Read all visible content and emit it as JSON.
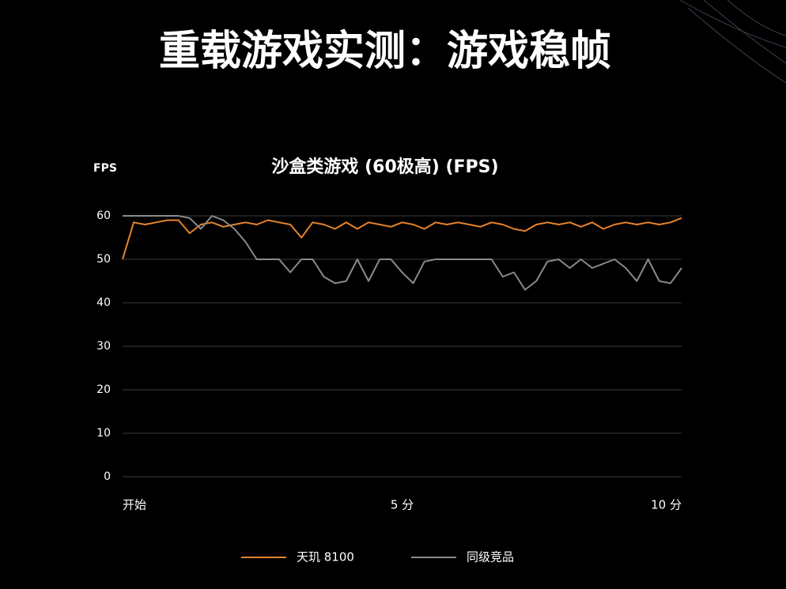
{
  "header": {
    "title": "重载游戏实测：游戏稳帧"
  },
  "chart_data": {
    "type": "line",
    "title": "沙盒类游戏 (60极高) (FPS)",
    "ylabel": "FPS",
    "x": [
      0,
      0.2,
      0.4,
      0.6,
      0.8,
      1,
      1.2,
      1.4,
      1.6,
      1.8,
      2,
      2.2,
      2.4,
      2.6,
      2.8,
      3,
      3.2,
      3.4,
      3.6,
      3.8,
      4,
      4.2,
      4.4,
      4.6,
      4.8,
      5,
      5.2,
      5.4,
      5.6,
      5.8,
      6,
      6.2,
      6.4,
      6.6,
      6.8,
      7,
      7.2,
      7.4,
      7.6,
      7.8,
      8,
      8.2,
      8.4,
      8.6,
      8.8,
      9,
      9.2,
      9.4,
      9.6,
      9.8,
      10
    ],
    "series": [
      {
        "name": "天玑 8100",
        "color": "#e8842c",
        "values": [
          50,
          58.5,
          58,
          58.5,
          59,
          59,
          56,
          58,
          58.5,
          57.5,
          58,
          58.5,
          58,
          59,
          58.5,
          58,
          55,
          58.5,
          58,
          57,
          58.5,
          57,
          58.5,
          58,
          57.5,
          58.5,
          58,
          57,
          58.5,
          58,
          58.5,
          58,
          57.5,
          58.5,
          58,
          57,
          56.5,
          58,
          58.5,
          58,
          58.5,
          57.5,
          58.5,
          57,
          58,
          58.5,
          58,
          58.5,
          58,
          58.5,
          59.5
        ]
      },
      {
        "name": "同级竞品",
        "color": "#8a8a8a",
        "values": [
          60,
          60,
          60,
          60,
          60,
          60,
          59.5,
          57,
          60,
          59,
          57,
          54,
          50,
          50,
          50,
          47,
          50,
          50,
          46,
          44.5,
          45,
          50,
          45,
          50,
          50,
          47,
          44.5,
          49.5,
          50,
          50,
          50,
          50,
          50,
          50,
          46,
          47,
          43,
          45,
          49.5,
          50,
          48,
          50,
          48,
          49,
          50,
          48,
          45,
          50,
          45,
          44.5,
          48
        ]
      }
    ],
    "xlim": [
      0,
      10
    ],
    "xticks": [
      {
        "value": 0,
        "label": "开始"
      },
      {
        "value": 5,
        "label": "5 分"
      },
      {
        "value": 10,
        "label": "10 分"
      }
    ],
    "ylim": [
      0,
      60
    ],
    "yticks": [
      0,
      10,
      20,
      30,
      40,
      50,
      60
    ],
    "grid": true
  }
}
